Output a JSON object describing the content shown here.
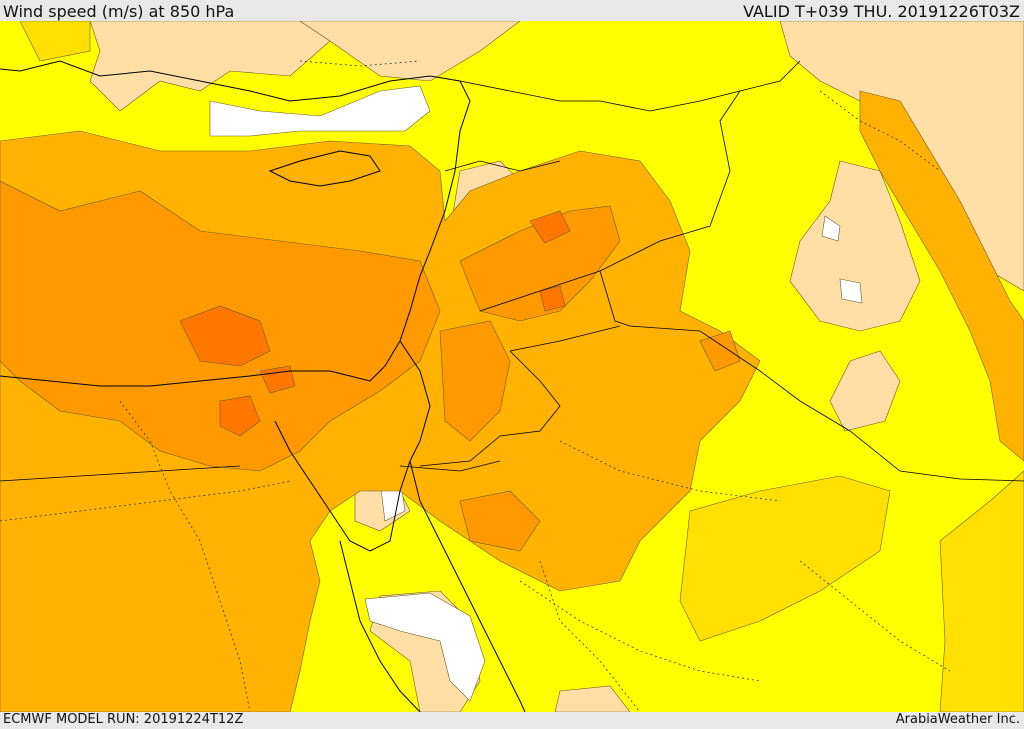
{
  "header": {
    "title": "Wind speed (m/s) at 850 hPa",
    "valid_time": "VALID T+039 THU. 20191226T03Z"
  },
  "footer": {
    "model_run": "ECMWF MODEL RUN: 20191224T12Z",
    "credit": "ArabiaWeather Inc."
  },
  "palette": {
    "calm": "#ffffff",
    "light": "#ffdfa6",
    "moderate": "#ffff00",
    "fresh": "#ffe000",
    "strong": "#ffb300",
    "very_strong": "#ff9900",
    "gale": "#ff7700",
    "border_color": "#000000"
  }
}
